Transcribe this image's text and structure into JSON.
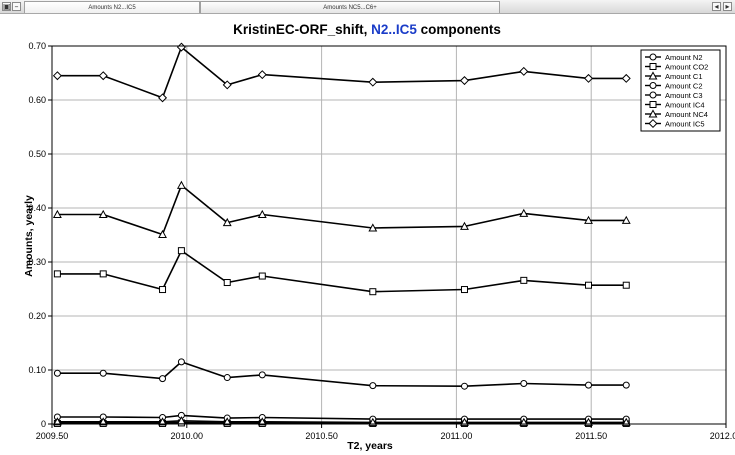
{
  "window": {
    "tabs": [
      {
        "label": "Amounts N2...IC5"
      },
      {
        "label": "Amounts NC5...C6+"
      }
    ]
  },
  "icons": {
    "left": [
      "maximize-icon",
      "minimize-icon"
    ],
    "right": [
      "scroll-left-icon",
      "scroll-right-icon"
    ]
  },
  "chart_data": {
    "type": "line",
    "title_parts": [
      "KristinEC-ORF_shift, ",
      "N2..IC5",
      " components"
    ],
    "title_highlight_color": "#1a3cc8",
    "xlabel": "T2, years",
    "ylabel": "Amounts, yearly",
    "xlim": [
      2009.5,
      2012.0
    ],
    "ylim": [
      0.0,
      0.7
    ],
    "xticks": [
      "2009.50",
      "2010.00",
      "2010.50",
      "2011.00",
      "2011.50",
      "2012.00"
    ],
    "xtick_values": [
      2009.5,
      2010.0,
      2010.5,
      2011.0,
      2011.5,
      2012.0
    ],
    "yticks": [
      "0",
      "0.10",
      "0.20",
      "0.30",
      "0.40",
      "0.50",
      "0.60",
      "0.70"
    ],
    "ytick_values": [
      0,
      0.1,
      0.2,
      0.3,
      0.4,
      0.5,
      0.6,
      0.7
    ],
    "grid": true,
    "legend_position": "top-right",
    "x": [
      2009.52,
      2009.69,
      2009.91,
      2009.98,
      2010.15,
      2010.28,
      2010.69,
      2011.03,
      2011.25,
      2011.49,
      2011.63
    ],
    "series": [
      {
        "name": "Amount N2",
        "marker": "circle",
        "values": [
          0.002,
          0.002,
          0.002,
          0.003,
          0.002,
          0.002,
          0.002,
          0.002,
          0.002,
          0.002,
          0.002
        ]
      },
      {
        "name": "Amount CO2",
        "marker": "square",
        "values": [
          0.001,
          0.001,
          0.001,
          0.002,
          0.001,
          0.001,
          0.001,
          0.001,
          0.001,
          0.001,
          0.001
        ]
      },
      {
        "name": "Amount C1",
        "marker": "triangle",
        "values": [
          0.388,
          0.388,
          0.351,
          0.442,
          0.373,
          0.388,
          0.363,
          0.366,
          0.39,
          0.377,
          0.377
        ]
      },
      {
        "name": "Amount C2",
        "marker": "circle",
        "values": [
          0.094,
          0.094,
          0.084,
          0.115,
          0.086,
          0.091,
          0.071,
          0.07,
          0.075,
          0.072,
          0.072
        ]
      },
      {
        "name": "Amount C3",
        "marker": "circle",
        "values": [
          0.013,
          0.013,
          0.012,
          0.016,
          0.011,
          0.012,
          0.009,
          0.009,
          0.009,
          0.009,
          0.009
        ]
      },
      {
        "name": "Amount IC4",
        "marker": "square",
        "values": [
          0.278,
          0.278,
          0.249,
          0.321,
          0.262,
          0.274,
          0.245,
          0.249,
          0.266,
          0.257,
          0.257
        ]
      },
      {
        "name": "Amount NC4",
        "marker": "triangle",
        "values": [
          0.004,
          0.004,
          0.004,
          0.006,
          0.004,
          0.004,
          0.003,
          0.003,
          0.003,
          0.003,
          0.003
        ]
      },
      {
        "name": "Amount IC5",
        "marker": "diamond",
        "values": [
          0.645,
          0.645,
          0.604,
          0.698,
          0.628,
          0.647,
          0.633,
          0.636,
          0.653,
          0.64,
          0.64
        ]
      }
    ]
  }
}
